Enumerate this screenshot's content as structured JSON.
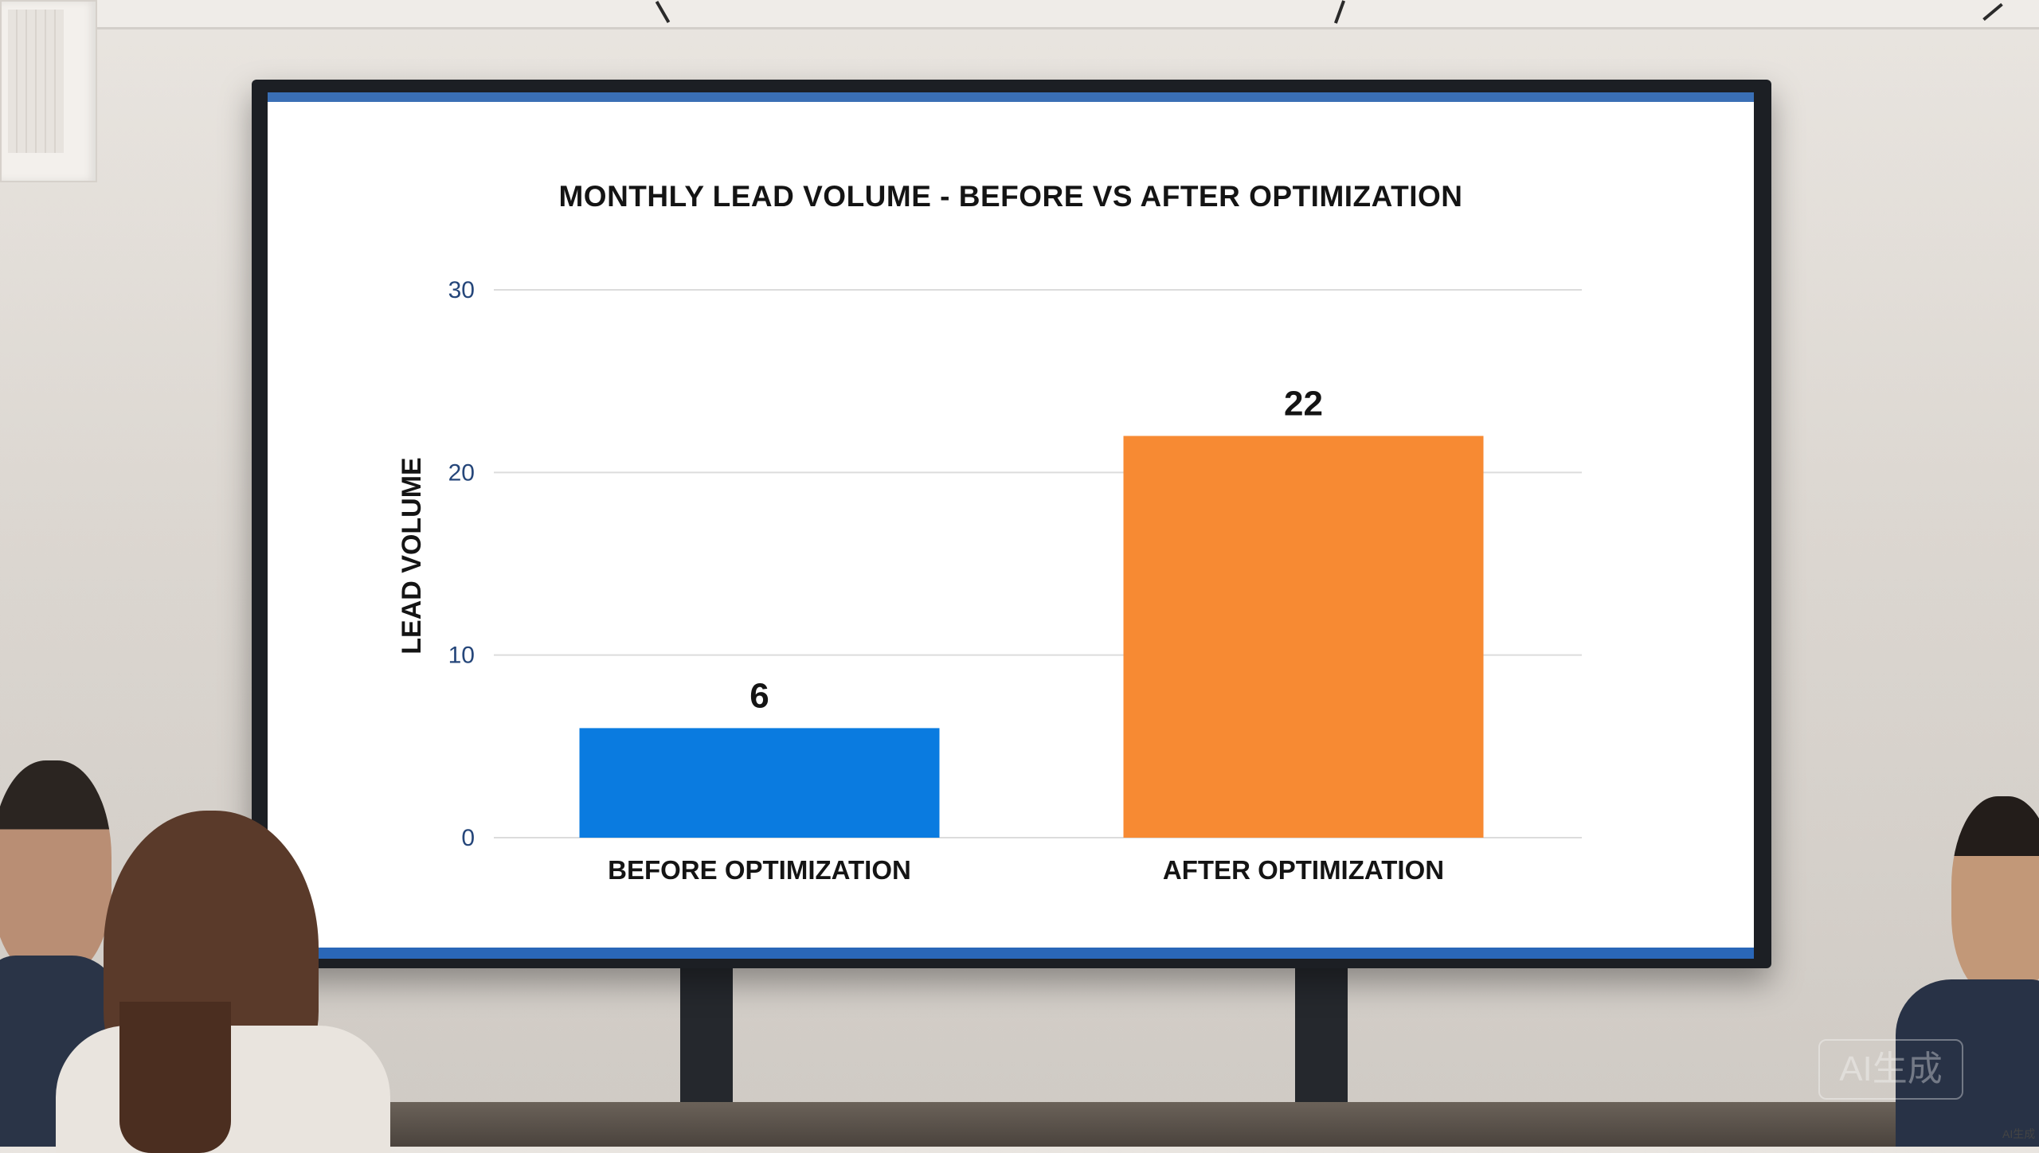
{
  "chart_data": {
    "type": "bar",
    "title": "MONTHLY LEAD VOLUME - BEFORE VS AFTER OPTIMIZATION",
    "xlabel": "",
    "ylabel": "LEAD VOLUME",
    "categories": [
      "BEFORE OPTIMIZATION",
      "AFTER OPTIMIZATION"
    ],
    "values": [
      6,
      22
    ],
    "value_labels": [
      "6",
      "22"
    ],
    "bar_colors": [
      "#0a7be0",
      "#f78a33"
    ],
    "ylim": [
      0,
      30
    ],
    "yticks": [
      0,
      10,
      20,
      30
    ],
    "grid": true,
    "legend": "none"
  },
  "watermark": {
    "badge_text": "AI生成",
    "corner_text": "AI生成"
  },
  "colors": {
    "screen_border": "#2a67b8",
    "tick_text": "#25467a"
  }
}
